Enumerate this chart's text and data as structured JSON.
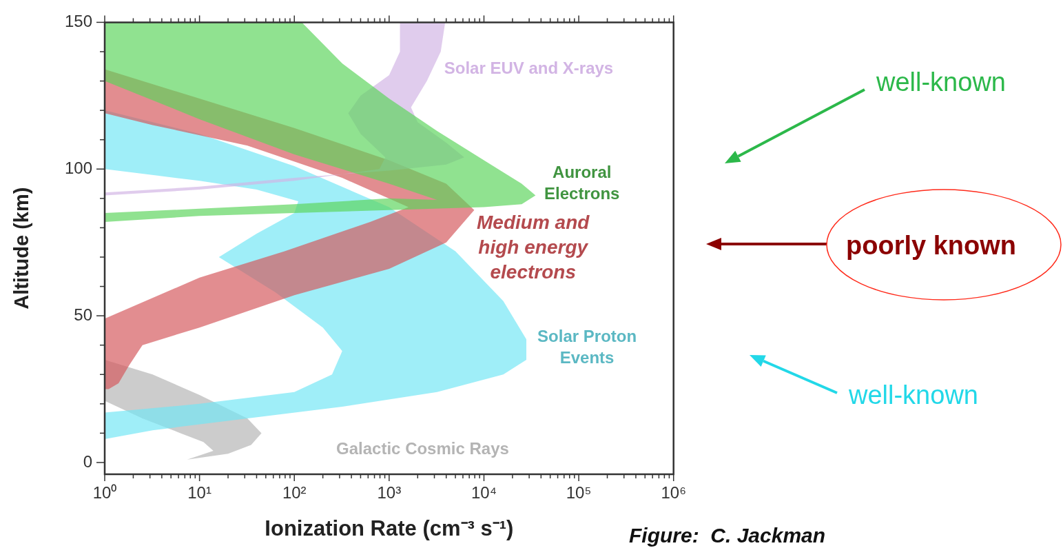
{
  "chart_data": {
    "type": "area",
    "xlabel": "Ionization Rate (cm⁻³ s⁻¹)",
    "ylabel": "Altitude (km)",
    "log": "x",
    "grid": false,
    "legend": false,
    "xlim": [
      1,
      1000000
    ],
    "ylim": [
      -4,
      150
    ],
    "xticks": [
      {
        "value": 1,
        "label": "10⁰"
      },
      {
        "value": 2,
        "label": null
      },
      {
        "value": 3,
        "label": null
      },
      {
        "value": 4,
        "label": null
      },
      {
        "value": 5,
        "label": null
      },
      {
        "value": 6,
        "label": null
      },
      {
        "value": 7,
        "label": null
      },
      {
        "value": 8,
        "label": null
      },
      {
        "value": 9,
        "label": null
      },
      {
        "value": 10,
        "label": "10¹"
      },
      {
        "value": 20,
        "label": null
      },
      {
        "value": 30,
        "label": null
      },
      {
        "value": 40,
        "label": null
      },
      {
        "value": 50,
        "label": null
      },
      {
        "value": 60,
        "label": null
      },
      {
        "value": 70,
        "label": null
      },
      {
        "value": 80,
        "label": null
      },
      {
        "value": 90,
        "label": null
      },
      {
        "value": 100,
        "label": "10²"
      },
      {
        "value": 200,
        "label": null
      },
      {
        "value": 300,
        "label": null
      },
      {
        "value": 400,
        "label": null
      },
      {
        "value": 500,
        "label": null
      },
      {
        "value": 600,
        "label": null
      },
      {
        "value": 700,
        "label": null
      },
      {
        "value": 800,
        "label": null
      },
      {
        "value": 900,
        "label": null
      },
      {
        "value": 1000,
        "label": "10³"
      },
      {
        "value": 2000,
        "label": null
      },
      {
        "value": 3000,
        "label": null
      },
      {
        "value": 4000,
        "label": null
      },
      {
        "value": 5000,
        "label": null
      },
      {
        "value": 6000,
        "label": null
      },
      {
        "value": 7000,
        "label": null
      },
      {
        "value": 8000,
        "label": null
      },
      {
        "value": 9000,
        "label": null
      },
      {
        "value": 10000,
        "label": "10⁴"
      },
      {
        "value": 20000,
        "label": null
      },
      {
        "value": 30000,
        "label": null
      },
      {
        "value": 40000,
        "label": null
      },
      {
        "value": 50000,
        "label": null
      },
      {
        "value": 60000,
        "label": null
      },
      {
        "value": 70000,
        "label": null
      },
      {
        "value": 80000,
        "label": null
      },
      {
        "value": 90000,
        "label": null
      },
      {
        "value": 100000,
        "label": "10⁵"
      },
      {
        "value": 200000,
        "label": null
      },
      {
        "value": 300000,
        "label": null
      },
      {
        "value": 400000,
        "label": null
      },
      {
        "value": 500000,
        "label": null
      },
      {
        "value": 600000,
        "label": null
      },
      {
        "value": 700000,
        "label": null
      },
      {
        "value": 800000,
        "label": null
      },
      {
        "value": 900000,
        "label": null
      },
      {
        "value": 1000000,
        "label": "10⁶"
      }
    ],
    "yticks": [
      0,
      {
        "value": 10,
        "label": null
      },
      {
        "value": 20,
        "label": null
      },
      {
        "value": 30,
        "label": null
      },
      {
        "value": 40,
        "label": null
      },
      50,
      {
        "value": 60,
        "label": null
      },
      {
        "value": 70,
        "label": null
      },
      {
        "value": 80,
        "label": null
      },
      {
        "value": 90,
        "label": null
      },
      100,
      {
        "value": 110,
        "label": null
      },
      {
        "value": 120,
        "label": null
      },
      {
        "value": 130,
        "label": null
      },
      {
        "value": 140,
        "label": null
      },
      150
    ],
    "series": [
      {
        "name": "Auroral Electrons",
        "color": "#5cd45c",
        "x": [
          1,
          120,
          320,
          1000,
          3200,
          10000,
          25000,
          35000,
          25000,
          10000,
          1000,
          100,
          10,
          1,
          1,
          10,
          100,
          1000,
          3200,
          1000,
          100,
          10,
          1,
          1
        ],
        "values": [
          150,
          150,
          136,
          124,
          113,
          103,
          95,
          91,
          88,
          87,
          86,
          85,
          84,
          82,
          85,
          86.5,
          88,
          90,
          89.5,
          95,
          105,
          117,
          130,
          150
        ]
      },
      {
        "name": "Solar EUV and X-rays",
        "color": "#d2b4e4",
        "x": [
          1300,
          1300,
          1000,
          500,
          370,
          500,
          910,
          790,
          100,
          10,
          1,
          1,
          10,
          100,
          1000,
          4000,
          6200,
          4000,
          2000,
          1700,
          2500,
          3500,
          3900
        ],
        "values": [
          150,
          140,
          132,
          125,
          119,
          112,
          104,
          100,
          96,
          93,
          91,
          92,
          94,
          97,
          99.5,
          101.5,
          104,
          109,
          116,
          121,
          130,
          140,
          150
        ]
      },
      {
        "name": "Medium and high energy electrons",
        "color": "#d4575c",
        "x": [
          1,
          10,
          100,
          1000,
          4000,
          7900,
          4000,
          1000,
          100,
          10,
          2.5,
          1.8,
          1.4,
          1.1,
          1,
          1,
          10,
          79,
          630,
          1600,
          320,
          32,
          3.2,
          1
        ],
        "values": [
          134,
          124,
          114,
          103,
          95,
          86,
          75,
          66,
          57,
          46,
          40,
          33,
          27,
          25,
          25,
          49,
          63,
          72,
          82,
          87,
          97,
          108,
          115,
          119
        ]
      },
      {
        "name": "Solar Proton Events",
        "color": "#72e6f4",
        "x": [
          1,
          10,
          100,
          1000,
          5000,
          16000,
          28000,
          28000,
          16000,
          3200,
          320,
          32,
          3.2,
          1,
          1,
          10,
          100,
          250,
          320,
          200,
          63,
          16,
          40,
          100,
          110,
          40,
          10,
          1
        ],
        "values": [
          120,
          112,
          101,
          87,
          72,
          55,
          42,
          35,
          30,
          24,
          19,
          15,
          11,
          8,
          17,
          20,
          24,
          30,
          38,
          46,
          58,
          70,
          78,
          85,
          89,
          93,
          96,
          100
        ]
      },
      {
        "name": "Galactic Cosmic Rays",
        "color": "#b4b4b4",
        "x": [
          1,
          3.2,
          10,
          32,
          45,
          35,
          20,
          7.4,
          14,
          11,
          6.3,
          2.5,
          1
        ],
        "values": [
          35,
          30,
          23,
          15,
          10,
          6,
          3,
          1,
          4,
          7,
          10,
          15,
          21
        ]
      }
    ],
    "annotations": [
      "well-known",
      "poorly known",
      "well-known",
      "Figure:  C. Jackman"
    ]
  }
}
